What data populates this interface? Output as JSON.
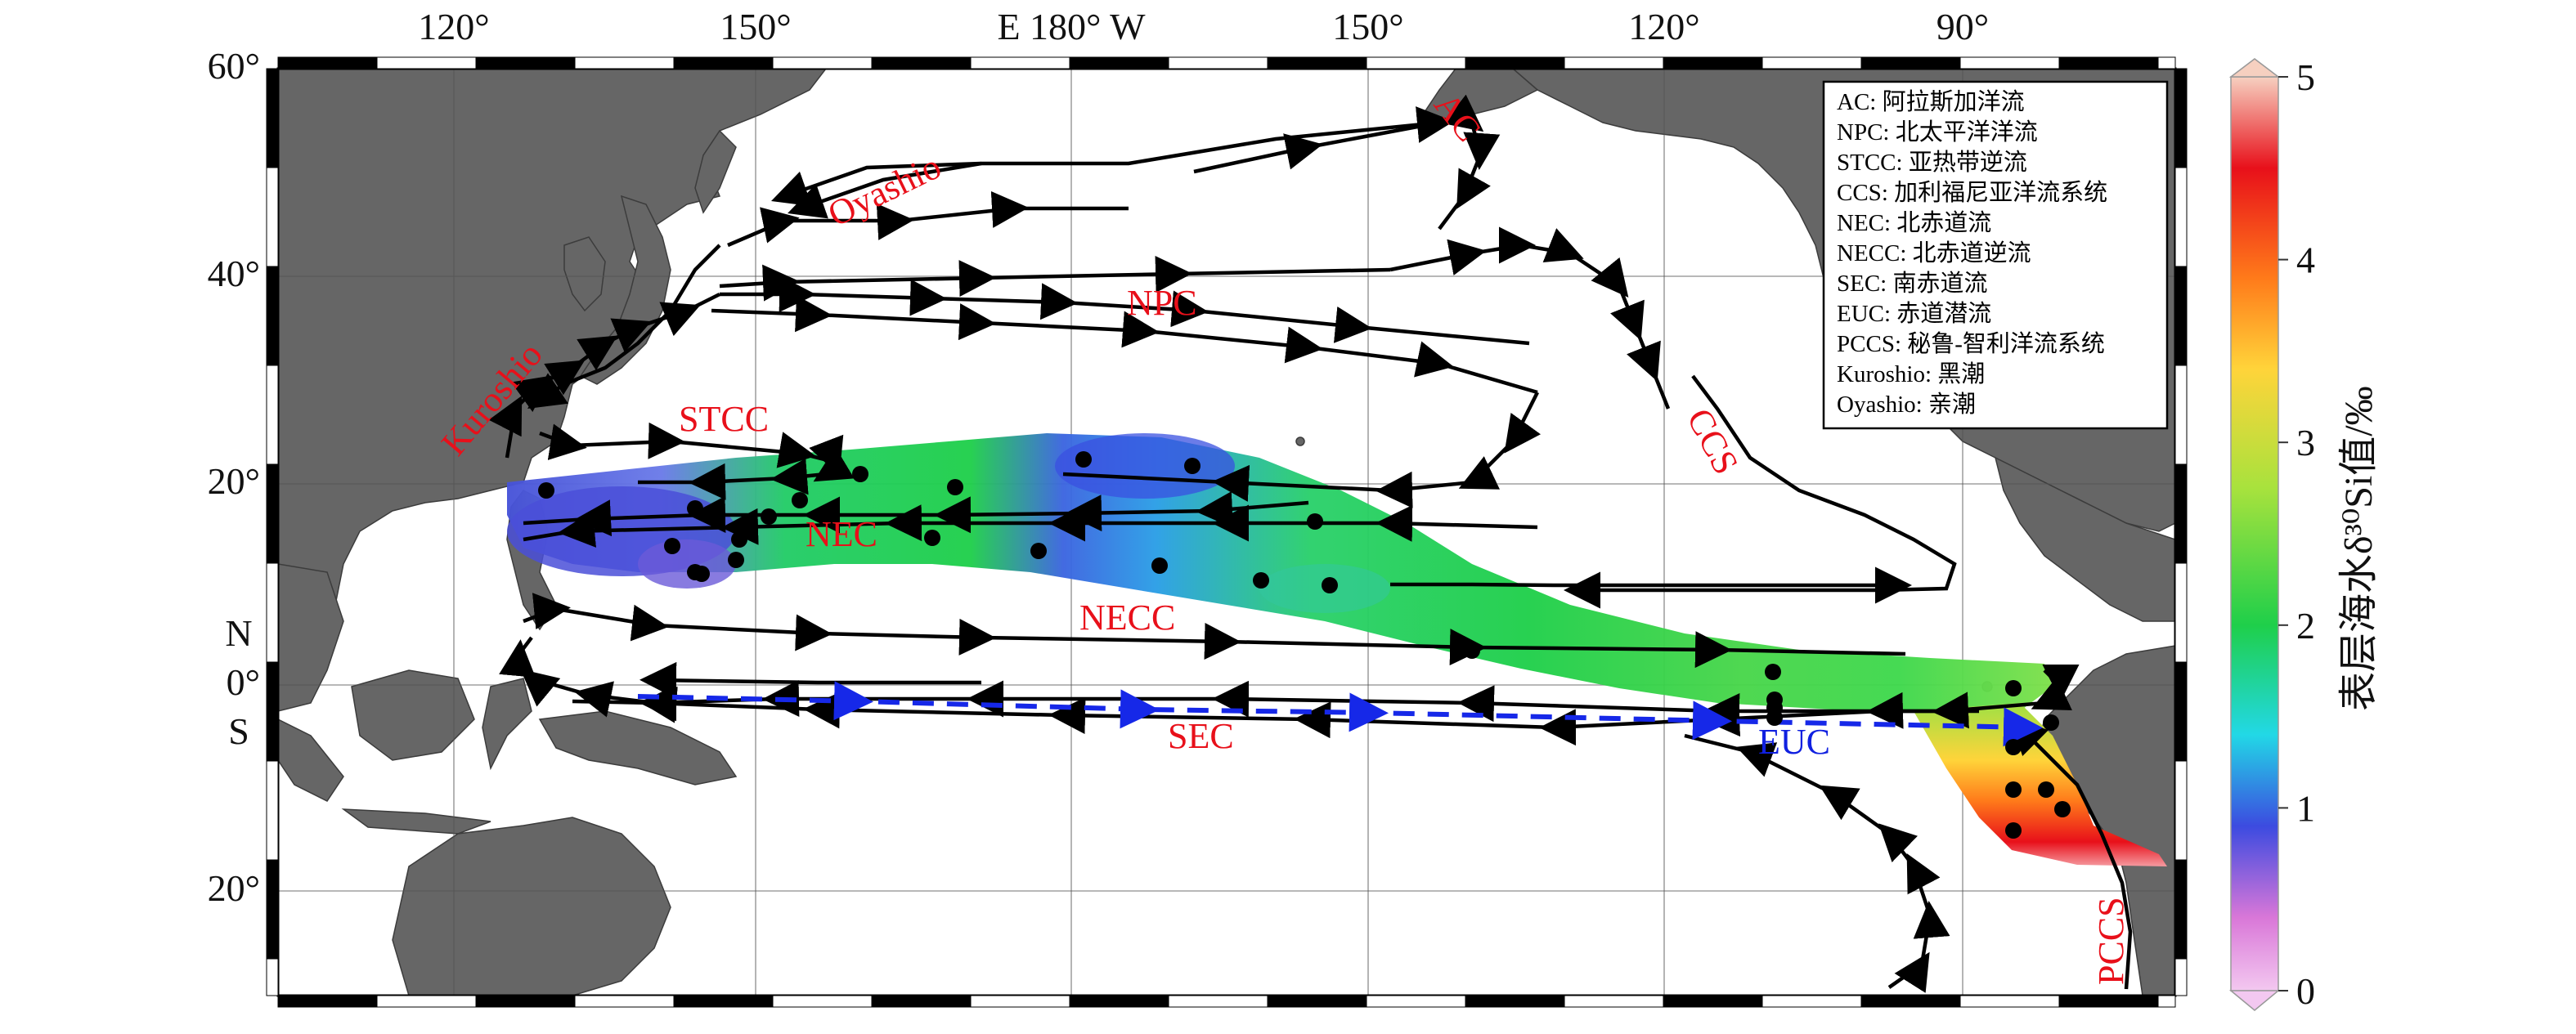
{
  "map": {
    "longitude_labels": [
      "120°",
      "150°",
      "E 180° W",
      "150°",
      "120°",
      "90°"
    ],
    "latitude_labels": [
      "60°",
      "40°",
      "20°",
      "0°",
      "20°"
    ],
    "hemisphere_labels": {
      "north": "N",
      "south": "S"
    }
  },
  "currents": {
    "AC": "AC",
    "Oyashio": "Oyashio",
    "NPC": "NPC",
    "CCS": "CCS",
    "Kuroshio": "Kuroshio",
    "STCC": "STCC",
    "NEC": "NEC",
    "NECC": "NECC",
    "SEC": "SEC",
    "EUC": "EUC",
    "PCCS": "PCCS"
  },
  "legend": [
    "AC: 阿拉斯加洋流",
    "NPC: 北太平洋洋流",
    "STCC: 亚热带逆流",
    "CCS: 加利福尼亚洋流系统",
    "NEC: 北赤道流",
    "NECC: 北赤道逆流",
    "SEC: 南赤道流",
    "EUC: 赤道潜流",
    "PCCS: 秘鲁-智利洋流系统",
    "Kuroshio: 黑潮",
    "Oyashio: 亲潮"
  ],
  "colorbar": {
    "title": "表层海水δ³⁰Si值/‰",
    "ticks": [
      "0",
      "1",
      "2",
      "3",
      "4",
      "5"
    ],
    "colors": [
      "#f3c8f0",
      "#d977d8",
      "#3c4be0",
      "#22d8e6",
      "#1fcf4a",
      "#a8e23d",
      "#ffd43a",
      "#ff7a1a",
      "#e8101a",
      "#f6d0c0"
    ]
  },
  "field_colors": {
    "low": "#3a48d8",
    "mid": "#1fcf4a",
    "high": "#e8101a"
  }
}
